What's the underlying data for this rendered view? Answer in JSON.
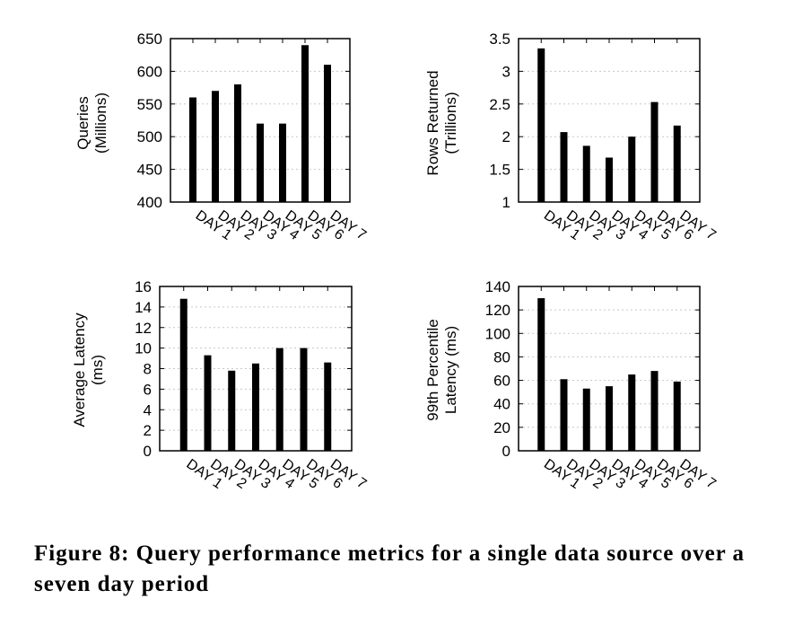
{
  "caption": "Figure 8: Query performance metrics for a single data source over a seven day period",
  "chart_data": [
    {
      "type": "bar",
      "ylabel": [
        "Queries",
        "(Millions)"
      ],
      "categories": [
        "DAY 1",
        "DAY 2",
        "DAY 3",
        "DAY 4",
        "DAY 5",
        "DAY 6",
        "DAY 7"
      ],
      "values": [
        560,
        570,
        580,
        520,
        520,
        640,
        610
      ],
      "ylim": [
        400,
        650
      ],
      "yticks": [
        400,
        450,
        500,
        550,
        600,
        650
      ],
      "grid": true,
      "bar_color": "#000000"
    },
    {
      "type": "bar",
      "ylabel": [
        "Rows Returned",
        "(Trillions)"
      ],
      "categories": [
        "DAY 1",
        "DAY 2",
        "DAY 3",
        "DAY 4",
        "DAY 5",
        "DAY 6",
        "DAY 7"
      ],
      "values": [
        3.35,
        2.07,
        1.86,
        1.68,
        2.0,
        2.53,
        2.17
      ],
      "ylim": [
        1,
        3.5
      ],
      "yticks": [
        "1",
        "1.5",
        "2",
        "2.5",
        "3",
        "3.5"
      ],
      "grid": true,
      "bar_color": "#000000"
    },
    {
      "type": "bar",
      "ylabel": [
        "Average Latency",
        "(ms)"
      ],
      "categories": [
        "DAY 1",
        "DAY 2",
        "DAY 3",
        "DAY 4",
        "DAY 5",
        "DAY 6",
        "DAY 7"
      ],
      "values": [
        14.8,
        9.3,
        7.8,
        8.5,
        10.0,
        10.0,
        8.6
      ],
      "ylim": [
        0,
        16
      ],
      "yticks": [
        0,
        2,
        4,
        6,
        8,
        10,
        12,
        14,
        16
      ],
      "grid": true,
      "bar_color": "#000000"
    },
    {
      "type": "bar",
      "ylabel": [
        "99th Percentile",
        "Latency (ms)"
      ],
      "categories": [
        "DAY 1",
        "DAY 2",
        "DAY 3",
        "DAY 4",
        "DAY 5",
        "DAY 6",
        "DAY 7"
      ],
      "values": [
        130,
        61,
        53,
        55,
        65,
        68,
        59
      ],
      "ylim": [
        0,
        140
      ],
      "yticks": [
        0,
        20,
        40,
        60,
        80,
        100,
        120,
        140
      ],
      "grid": true,
      "bar_color": "#000000"
    }
  ]
}
